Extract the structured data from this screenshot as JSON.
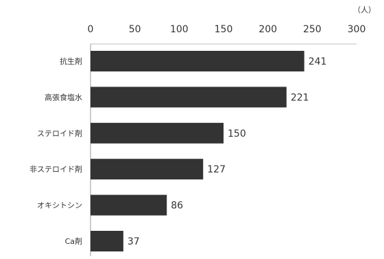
{
  "chart_data": {
    "type": "bar",
    "orientation": "horizontal",
    "categories": [
      "抗生剤",
      "高張食塩水",
      "ステロイド剤",
      "非ステロイド剤",
      "オキシトシン",
      "Ca剤"
    ],
    "values": [
      241,
      221,
      150,
      127,
      86,
      37
    ],
    "xlim": [
      0,
      300
    ],
    "xticks": [
      0,
      50,
      100,
      150,
      200,
      250,
      300
    ],
    "unit": "（人）",
    "grid": false,
    "bar_color": "#333333"
  }
}
